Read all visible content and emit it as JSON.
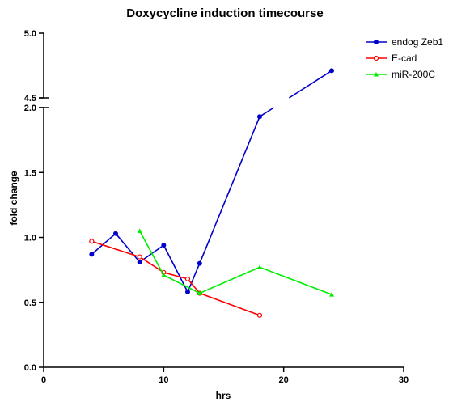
{
  "chart_data": {
    "type": "line",
    "title": "Doxycycline induction timecourse",
    "xlabel": "hrs",
    "ylabel": "fold change",
    "xlim": [
      0,
      30
    ],
    "x_ticks": [
      "0",
      "10",
      "20",
      "30"
    ],
    "y_axis_segments": [
      {
        "range": [
          0,
          2.0
        ],
        "ticks": [
          "0.0",
          "0.5",
          "1.0",
          "1.5",
          "2.0"
        ]
      },
      {
        "range": [
          4.5,
          5.0
        ],
        "ticks": [
          "4.5",
          "5.0"
        ]
      }
    ],
    "legend_position": "top-right",
    "grid": false,
    "series": [
      {
        "name": "endog Zeb1",
        "color": "#0000cc",
        "marker": "dot",
        "x": [
          4,
          6,
          8,
          10,
          12,
          13,
          18,
          24
        ],
        "y": [
          0.87,
          1.03,
          0.81,
          0.94,
          0.58,
          0.8,
          1.93,
          4.71
        ]
      },
      {
        "name": "E-cad",
        "color": "#ff0000",
        "marker": "open-circle",
        "x": [
          4,
          8,
          10,
          12,
          13,
          18
        ],
        "y": [
          0.97,
          0.85,
          0.73,
          0.68,
          0.57,
          0.4
        ]
      },
      {
        "name": "miR-200C",
        "color": "#00ee00",
        "marker": "triangle",
        "x": [
          8,
          10,
          13,
          18,
          24
        ],
        "y": [
          1.05,
          0.71,
          0.57,
          0.77,
          0.56
        ]
      }
    ]
  }
}
